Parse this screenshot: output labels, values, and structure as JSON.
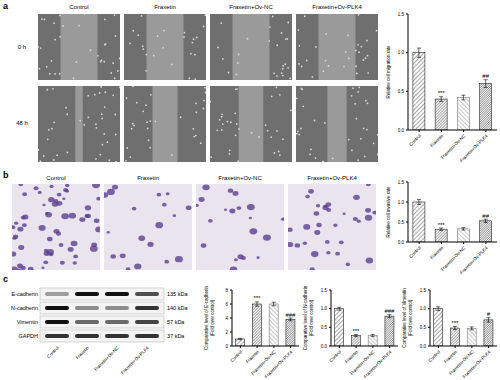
{
  "panels": {
    "a": {
      "label": "a",
      "columns": [
        "Control",
        "Fraxetin",
        "Fraxetin+Ov-NC",
        "Fraxetin+Ov-PLK4"
      ],
      "rows": [
        "0 h",
        "48 h"
      ]
    },
    "b": {
      "label": "b",
      "columns": [
        "Control",
        "Fraxetin",
        "Fraxetin+Ov-NC",
        "Fraxetin+Ov-PLK4"
      ]
    },
    "c": {
      "label": "c",
      "blot_rows": [
        {
          "name": "E-cadherin",
          "size": "135 kDa"
        },
        {
          "name": "N-cadherin",
          "size": "140 kDa"
        },
        {
          "name": "Vimentin",
          "size": "57 kDa"
        },
        {
          "name": "GAPDH",
          "size": "37 kDa"
        }
      ],
      "lanes": [
        "Control",
        "Fraxetin",
        "Fraxetin+Ov-NC",
        "Fraxetin+Ov-PLK4"
      ]
    }
  },
  "chart_data": [
    {
      "type": "bar",
      "ylabel": [
        "Relative cell migration rate"
      ],
      "categories": [
        "Control",
        "Fraxetin",
        "Fraxetin+Ov-NC",
        "Fraxetin+Ov-PLK4"
      ],
      "values": [
        1.0,
        0.4,
        0.42,
        0.6
      ],
      "errors": [
        0.06,
        0.03,
        0.03,
        0.05
      ],
      "annotations": [
        null,
        "***",
        null,
        "##"
      ],
      "colors": [
        "#222222",
        "#222222",
        "#777777",
        "#222222"
      ],
      "ylim": [
        0,
        1.5
      ],
      "yticks": [
        {
          "value": 0,
          "label": "0.0"
        },
        {
          "value": 0.5,
          "label": "0.5"
        },
        {
          "value": 1,
          "label": "1.0"
        },
        {
          "value": 1.5,
          "label": "1.5"
        }
      ]
    },
    {
      "type": "bar",
      "ylabel": [
        "Relative cell invasive rate"
      ],
      "categories": [
        "Control",
        "Fraxetin",
        "Fraxetin+Ov-NC",
        "Fraxetin+Ov-PLK4"
      ],
      "values": [
        1.0,
        0.32,
        0.33,
        0.53
      ],
      "errors": [
        0.06,
        0.03,
        0.03,
        0.04
      ],
      "annotations": [
        null,
        "***",
        null,
        "##"
      ],
      "colors": [
        "#222222",
        "#222222",
        "#777777",
        "#222222"
      ],
      "ylim": [
        0,
        1.5
      ],
      "yticks": [
        {
          "value": 0,
          "label": "0.0"
        },
        {
          "value": 0.5,
          "label": "0.5"
        },
        {
          "value": 1,
          "label": "1.0"
        },
        {
          "value": 1.5,
          "label": "1.5"
        }
      ]
    },
    {
      "type": "bar",
      "ylabel": [
        "Comparative level of E-cadherin",
        "(Fold over control)"
      ],
      "categories": [
        "Control",
        "Fraxetin",
        "Fraxetin+Ov-NC",
        "Fraxetin+Ov-PLK4"
      ],
      "values": [
        1.0,
        6.0,
        6.0,
        3.8
      ],
      "errors": [
        0.1,
        0.3,
        0.25,
        0.2
      ],
      "annotations": [
        null,
        "***",
        null,
        "###"
      ],
      "colors": [
        "#222222",
        "#222222",
        "#777777",
        "#222222"
      ],
      "ylim": [
        0,
        8
      ],
      "yticks": [
        0,
        2,
        4,
        6,
        8
      ]
    },
    {
      "type": "bar",
      "ylabel": [
        "Comparative level of N-cadherin",
        "(Fold over control)"
      ],
      "categories": [
        "Control",
        "Fraxetin",
        "Fraxetin+Ov-NC",
        "Fraxetin+Ov-PLK4"
      ],
      "values": [
        1.0,
        0.28,
        0.28,
        0.8
      ],
      "errors": [
        0.04,
        0.03,
        0.03,
        0.04
      ],
      "annotations": [
        null,
        "***",
        null,
        "###"
      ],
      "colors": [
        "#222222",
        "#222222",
        "#777777",
        "#222222"
      ],
      "ylim": [
        0,
        1.5
      ],
      "yticks": [
        {
          "value": 0,
          "label": "0.0"
        },
        {
          "value": 0.5,
          "label": "0.5"
        },
        {
          "value": 1,
          "label": "1.0"
        },
        {
          "value": 1.5,
          "label": "1.5"
        }
      ]
    },
    {
      "type": "bar",
      "ylabel": [
        "Comparative level of Vimentin",
        "(Fold over control)"
      ],
      "categories": [
        "Control",
        "Fraxetin",
        "Fraxetin+Ov-NC",
        "Fraxetin+Ov-PLK4"
      ],
      "values": [
        1.0,
        0.48,
        0.47,
        0.7
      ],
      "errors": [
        0.05,
        0.04,
        0.04,
        0.06
      ],
      "annotations": [
        null,
        "***",
        null,
        "#"
      ],
      "colors": [
        "#222222",
        "#222222",
        "#777777",
        "#222222"
      ],
      "ylim": [
        0,
        1.5
      ],
      "yticks": [
        {
          "value": 0,
          "label": "0.0"
        },
        {
          "value": 0.5,
          "label": "0.5"
        },
        {
          "value": 1,
          "label": "1.0"
        },
        {
          "value": 1.5,
          "label": "1.5"
        }
      ]
    }
  ]
}
